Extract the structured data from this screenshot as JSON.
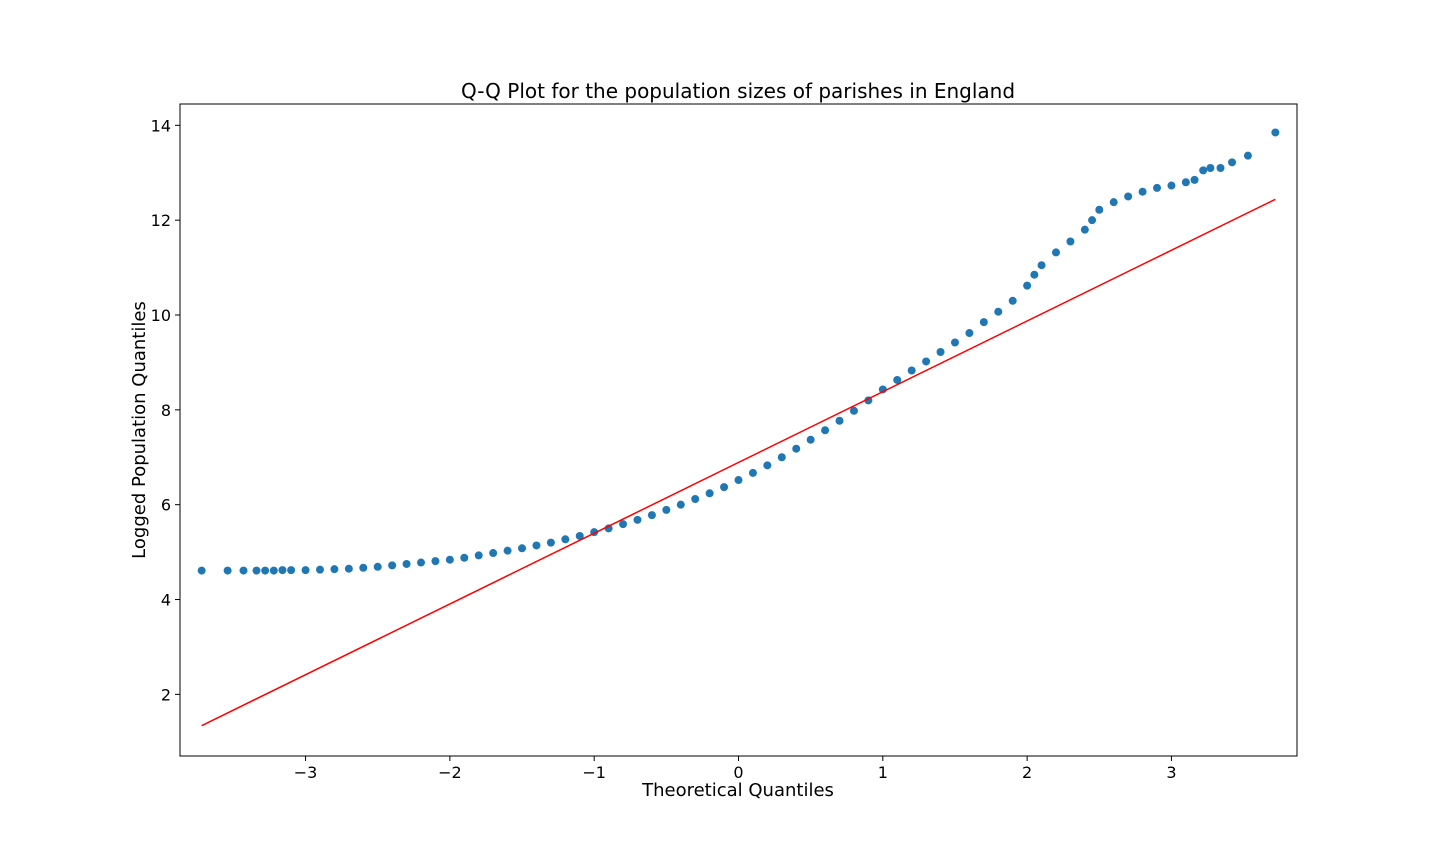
{
  "chart_data": {
    "type": "scatter",
    "title": "Q-Q Plot for the population sizes of parishes in England",
    "xlabel": "Theoretical Quantiles",
    "ylabel": "Logged Population Quantiles",
    "xlim": [
      -3.87,
      3.87
    ],
    "ylim": [
      0.7,
      14.45
    ],
    "x_ticks": [
      -3,
      -2,
      -1,
      0,
      1,
      2,
      3
    ],
    "x_tick_labels": [
      "−3",
      "−2",
      "−1",
      "0",
      "1",
      "2",
      "3"
    ],
    "y_ticks": [
      2,
      4,
      6,
      8,
      10,
      12,
      14
    ],
    "y_tick_labels": [
      "2",
      "4",
      "6",
      "8",
      "10",
      "12",
      "14"
    ],
    "grid": false,
    "series": [
      {
        "kind": "points",
        "color": "#1f77b4",
        "points": [
          [
            -3.72,
            4.61
          ],
          [
            -3.54,
            4.61
          ],
          [
            -3.43,
            4.61
          ],
          [
            -3.34,
            4.61
          ],
          [
            -3.28,
            4.61
          ],
          [
            -3.22,
            4.61
          ],
          [
            -3.16,
            4.62
          ],
          [
            -3.1,
            4.62
          ],
          [
            -3.0,
            4.62
          ],
          [
            -2.9,
            4.63
          ],
          [
            -2.8,
            4.64
          ],
          [
            -2.7,
            4.65
          ],
          [
            -2.6,
            4.67
          ],
          [
            -2.5,
            4.69
          ],
          [
            -2.4,
            4.72
          ],
          [
            -2.3,
            4.75
          ],
          [
            -2.2,
            4.78
          ],
          [
            -2.1,
            4.81
          ],
          [
            -2.0,
            4.84
          ],
          [
            -1.9,
            4.88
          ],
          [
            -1.8,
            4.93
          ],
          [
            -1.7,
            4.98
          ],
          [
            -1.6,
            5.03
          ],
          [
            -1.5,
            5.08
          ],
          [
            -1.4,
            5.14
          ],
          [
            -1.3,
            5.2
          ],
          [
            -1.2,
            5.27
          ],
          [
            -1.1,
            5.34
          ],
          [
            -1.0,
            5.42
          ],
          [
            -0.9,
            5.5
          ],
          [
            -0.8,
            5.59
          ],
          [
            -0.7,
            5.68
          ],
          [
            -0.6,
            5.78
          ],
          [
            -0.5,
            5.89
          ],
          [
            -0.4,
            6.0
          ],
          [
            -0.3,
            6.12
          ],
          [
            -0.2,
            6.24
          ],
          [
            -0.1,
            6.37
          ],
          [
            0.0,
            6.52
          ],
          [
            0.1,
            6.67
          ],
          [
            0.2,
            6.83
          ],
          [
            0.3,
            7.0
          ],
          [
            0.4,
            7.18
          ],
          [
            0.5,
            7.37
          ],
          [
            0.6,
            7.57
          ],
          [
            0.7,
            7.77
          ],
          [
            0.8,
            7.98
          ],
          [
            0.9,
            8.2
          ],
          [
            1.0,
            8.43
          ],
          [
            1.1,
            8.63
          ],
          [
            1.2,
            8.83
          ],
          [
            1.3,
            9.02
          ],
          [
            1.4,
            9.22
          ],
          [
            1.5,
            9.42
          ],
          [
            1.6,
            9.62
          ],
          [
            1.7,
            9.85
          ],
          [
            1.8,
            10.07
          ],
          [
            1.9,
            10.3
          ],
          [
            2.0,
            10.62
          ],
          [
            2.05,
            10.85
          ],
          [
            2.1,
            11.05
          ],
          [
            2.2,
            11.32
          ],
          [
            2.3,
            11.55
          ],
          [
            2.4,
            11.8
          ],
          [
            2.45,
            12.0
          ],
          [
            2.5,
            12.22
          ],
          [
            2.6,
            12.38
          ],
          [
            2.7,
            12.5
          ],
          [
            2.8,
            12.6
          ],
          [
            2.9,
            12.68
          ],
          [
            3.0,
            12.73
          ],
          [
            3.1,
            12.8
          ],
          [
            3.16,
            12.85
          ],
          [
            3.22,
            13.05
          ],
          [
            3.27,
            13.1
          ],
          [
            3.34,
            13.1
          ],
          [
            3.42,
            13.22
          ],
          [
            3.53,
            13.36
          ],
          [
            3.72,
            13.85
          ]
        ]
      },
      {
        "kind": "line",
        "color": "#ff0000",
        "points": [
          [
            -3.72,
            1.34
          ],
          [
            3.72,
            12.44
          ]
        ]
      }
    ]
  }
}
